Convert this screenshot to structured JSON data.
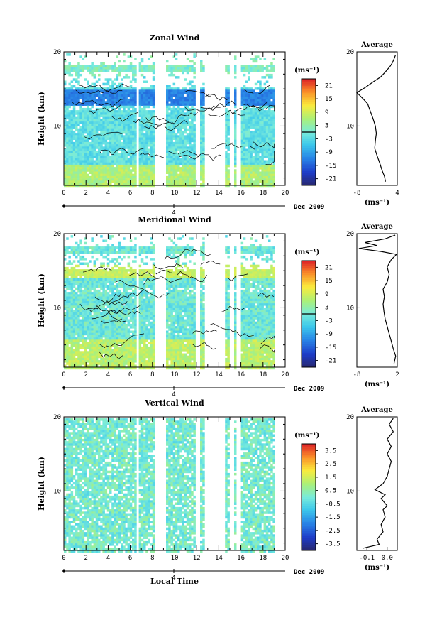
{
  "figure": {
    "time_label": "Local Time",
    "date_label": "Dec 2009",
    "day_label": "4"
  },
  "chart_data": [
    {
      "type": "heatmap",
      "title": "Zonal Wind",
      "xlabel": "",
      "ylabel": "Height (km)",
      "xlim": [
        0,
        20
      ],
      "ylim": [
        2,
        20
      ],
      "x_ticks": [
        "0",
        "2",
        "4",
        "6",
        "8",
        "10",
        "12",
        "14",
        "16",
        "18",
        "20"
      ],
      "y_ticks": [
        "10",
        "20"
      ],
      "colorbar": {
        "unit": "(ms⁻¹)",
        "range": [
          -24,
          24
        ],
        "ticks": [
          "21",
          "15",
          "9",
          "3",
          "-3",
          "-9",
          "-15",
          "-21"
        ],
        "marked_level": 0
      },
      "average_profile": {
        "title": "Average",
        "xlabel": "(ms⁻¹)",
        "xlim": [
          -8,
          4
        ],
        "x_ticks": [
          "-8",
          "4"
        ],
        "y_ticks": [
          "10",
          "20"
        ],
        "points": [
          [
            0.5,
            2.5
          ],
          [
            0.2,
            3.2
          ],
          [
            -0.5,
            4.0
          ],
          [
            -1.2,
            5.0
          ],
          [
            -2.0,
            6.0
          ],
          [
            -2.7,
            7.0
          ],
          [
            -2.5,
            8.0
          ],
          [
            -2.2,
            9.0
          ],
          [
            -2.5,
            10.0
          ],
          [
            -3.2,
            11.0
          ],
          [
            -4.0,
            12.0
          ],
          [
            -4.8,
            13.0
          ],
          [
            -6.0,
            13.6
          ],
          [
            -8.0,
            14.5
          ],
          [
            -5.5,
            15.2
          ],
          [
            -3.0,
            16.0
          ],
          [
            -1.0,
            16.6
          ],
          [
            0.3,
            17.2
          ],
          [
            1.8,
            18.0
          ],
          [
            2.5,
            18.5
          ],
          [
            3.0,
            19.0
          ],
          [
            3.5,
            19.6
          ]
        ]
      }
    },
    {
      "type": "heatmap",
      "title": "Meridional Wind",
      "xlabel": "",
      "ylabel": "Height (km)",
      "xlim": [
        0,
        20
      ],
      "ylim": [
        2,
        20
      ],
      "x_ticks": [
        "0",
        "2",
        "4",
        "6",
        "8",
        "10",
        "12",
        "14",
        "16",
        "18",
        "20"
      ],
      "y_ticks": [
        "10",
        "20"
      ],
      "colorbar": {
        "unit": "(ms⁻¹)",
        "range": [
          -24,
          24
        ],
        "ticks": [
          "21",
          "15",
          "9",
          "3",
          "-3",
          "-9",
          "-15",
          "-21"
        ],
        "marked_level": 0
      },
      "average_profile": {
        "title": "Average",
        "xlabel": "(ms⁻¹)",
        "xlim": [
          -8,
          2
        ],
        "x_ticks": [
          "-8",
          "2"
        ],
        "y_ticks": [
          "10",
          "20"
        ],
        "points": [
          [
            1.2,
            2.5
          ],
          [
            1.6,
            3.5
          ],
          [
            1.0,
            4.5
          ],
          [
            0.5,
            5.5
          ],
          [
            0.0,
            6.5
          ],
          [
            -0.5,
            7.5
          ],
          [
            -1.0,
            8.5
          ],
          [
            -1.3,
            9.5
          ],
          [
            -1.5,
            10.5
          ],
          [
            -1.2,
            11.5
          ],
          [
            -1.5,
            12.5
          ],
          [
            -0.5,
            13.5
          ],
          [
            0.0,
            14.5
          ],
          [
            -0.5,
            15.5
          ],
          [
            0.5,
            16.5
          ],
          [
            1.8,
            17.2
          ],
          [
            -2.0,
            17.6
          ],
          [
            -7.5,
            18.0
          ],
          [
            -3.0,
            18.4
          ],
          [
            -6.0,
            18.8
          ],
          [
            -1.0,
            19.3
          ],
          [
            1.5,
            19.8
          ]
        ]
      }
    },
    {
      "type": "heatmap",
      "title": "Vertical Wind",
      "xlabel": "Local Time",
      "ylabel": "Height (km)",
      "xlim": [
        0,
        20
      ],
      "ylim": [
        2,
        20
      ],
      "x_ticks": [
        "0",
        "2",
        "4",
        "6",
        "8",
        "10",
        "12",
        "14",
        "16",
        "18",
        "20"
      ],
      "y_ticks": [
        "10",
        "20"
      ],
      "colorbar": {
        "unit": "(ms⁻¹)",
        "range": [
          -4,
          4
        ],
        "ticks": [
          "3.5",
          "2.5",
          "1.5",
          "0.5",
          "-0.5",
          "-1.5",
          "-2.5",
          "-3.5"
        ]
      },
      "average_profile": {
        "title": "Average",
        "xlabel": "(ms⁻¹)",
        "xlim": [
          -0.15,
          0.05
        ],
        "x_ticks": [
          "-0.1",
          "0.0"
        ],
        "y_ticks": [
          "10",
          "20"
        ],
        "points": [
          [
            -0.12,
            2.3
          ],
          [
            -0.04,
            2.8
          ],
          [
            -0.05,
            3.5
          ],
          [
            -0.02,
            4.5
          ],
          [
            -0.03,
            5.5
          ],
          [
            -0.01,
            6.5
          ],
          [
            -0.02,
            7.5
          ],
          [
            0.0,
            8.0
          ],
          [
            -0.03,
            9.0
          ],
          [
            -0.01,
            9.5
          ],
          [
            -0.06,
            10.2
          ],
          [
            -0.02,
            11.0
          ],
          [
            0.0,
            12.0
          ],
          [
            0.01,
            13.0
          ],
          [
            0.02,
            14.0
          ],
          [
            0.0,
            15.0
          ],
          [
            0.02,
            16.0
          ],
          [
            0.0,
            17.0
          ],
          [
            0.03,
            18.0
          ],
          [
            0.01,
            19.0
          ],
          [
            0.03,
            19.8
          ]
        ]
      }
    }
  ]
}
